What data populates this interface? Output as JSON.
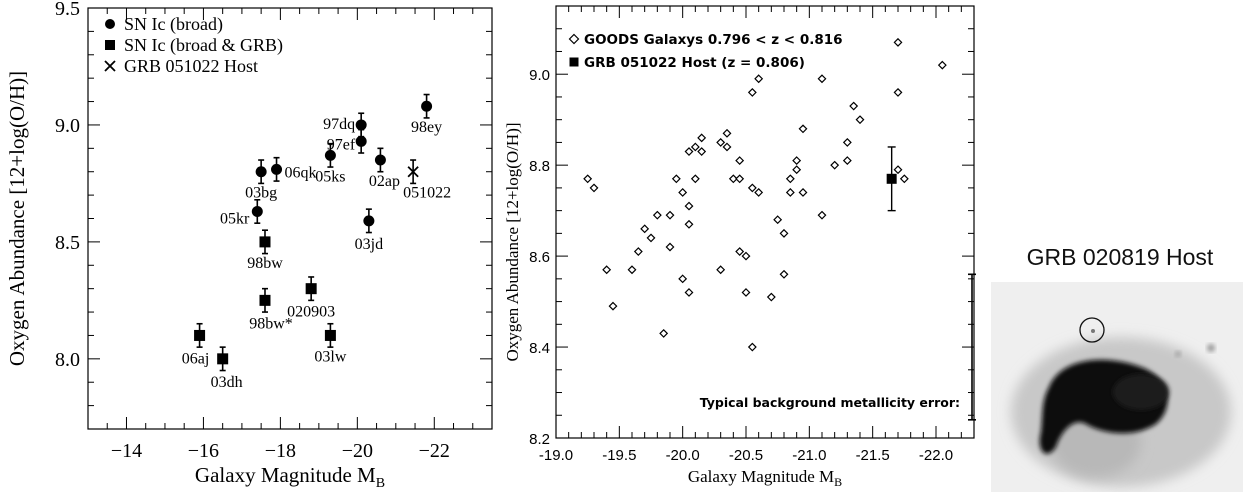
{
  "chart_data": [
    {
      "type": "scatter",
      "xlabel": "Galaxy Magnitude M",
      "xlabel_sub": "B",
      "ylabel": "Oxygen Abundance [12+log(O/H)]",
      "xlim": [
        -13,
        -23.5
      ],
      "ylim": [
        7.7,
        9.5
      ],
      "xticks": [
        -14,
        -16,
        -18,
        -20,
        -22
      ],
      "xtick_labels": [
        "−14",
        "−16",
        "−18",
        "−20",
        "−22"
      ],
      "yticks": [
        8.0,
        8.5,
        9.0,
        9.5
      ],
      "ytick_labels": [
        "8.0",
        "8.5",
        "9.0",
        "9.5"
      ],
      "legend_position": "top-left",
      "legend": [
        {
          "marker": "circle",
          "label": "SN Ic (broad)"
        },
        {
          "marker": "square",
          "label": "SN Ic (broad & GRB)"
        },
        {
          "marker": "x",
          "label": "GRB 051022 Host"
        }
      ],
      "series": [
        {
          "name": "SN Ic (broad)",
          "marker": "circle",
          "points": [
            {
              "label": "03bg",
              "x": -17.5,
              "y": 8.8,
              "err": 0.05
            },
            {
              "label": "06qk",
              "x": -17.9,
              "y": 8.81,
              "err": 0.05
            },
            {
              "label": "05kr",
              "x": -17.4,
              "y": 8.63,
              "err": 0.05
            },
            {
              "label": "05ks",
              "x": -19.3,
              "y": 8.87,
              "err": 0.05
            },
            {
              "label": "97dq",
              "x": -20.1,
              "y": 9.0,
              "err": 0.05
            },
            {
              "label": "97ef",
              "x": -20.1,
              "y": 8.93,
              "err": 0.05
            },
            {
              "label": "02ap",
              "x": -20.6,
              "y": 8.85,
              "err": 0.05
            },
            {
              "label": "03jd",
              "x": -20.3,
              "y": 8.59,
              "err": 0.05
            },
            {
              "label": "98ey",
              "x": -21.8,
              "y": 9.08,
              "err": 0.05
            }
          ]
        },
        {
          "name": "SN Ic (broad & GRB)",
          "marker": "square",
          "points": [
            {
              "label": "98bw",
              "x": -17.6,
              "y": 8.5,
              "err": 0.05
            },
            {
              "label": "98bw*",
              "x": -17.6,
              "y": 8.25,
              "err": 0.05
            },
            {
              "label": "020903",
              "x": -18.8,
              "y": 8.3,
              "err": 0.05
            },
            {
              "label": "03lw",
              "x": -19.3,
              "y": 8.1,
              "err": 0.05
            },
            {
              "label": "06aj",
              "x": -15.9,
              "y": 8.1,
              "err": 0.05
            },
            {
              "label": "03dh",
              "x": -16.5,
              "y": 8.0,
              "err": 0.05
            }
          ]
        },
        {
          "name": "GRB 051022 Host",
          "marker": "x",
          "points": [
            {
              "label": "051022",
              "x": -21.45,
              "y": 8.8,
              "err": 0.05
            }
          ]
        }
      ]
    },
    {
      "type": "scatter",
      "xlabel": "Galaxy Magnitude M",
      "xlabel_sub": "B",
      "ylabel": "Oxygen Abundance [12+log(O/H)]",
      "xlim": [
        -19.0,
        -22.3
      ],
      "ylim": [
        8.2,
        9.15
      ],
      "xticks": [
        -19.0,
        -19.5,
        -20.0,
        -20.5,
        -21.0,
        -21.5,
        -22.0
      ],
      "xtick_labels": [
        "-19.0",
        "-19.5",
        "-20.0",
        "-20.5",
        "-21.0",
        "-21.5",
        "-22.0"
      ],
      "yticks": [
        8.2,
        8.4,
        8.6,
        8.8,
        9.0
      ],
      "ytick_labels": [
        "8.2",
        "8.4",
        "8.6",
        "8.8",
        "9.0"
      ],
      "legend_position": "top-left",
      "legend": [
        {
          "marker": "diamond",
          "label": "GOODS Galaxys 0.796 < z < 0.816"
        },
        {
          "marker": "square",
          "label": "GRB 051022 Host (z = 0.806)"
        }
      ],
      "annotation": "Typical background metallicity error:",
      "typical_error": {
        "low": 8.24,
        "high": 8.56
      },
      "series": [
        {
          "name": "GOODS Galaxys 0.796 < z < 0.816",
          "marker": "diamond",
          "points": [
            [
              -19.25,
              8.77
            ],
            [
              -19.3,
              8.75
            ],
            [
              -19.4,
              8.57
            ],
            [
              -19.45,
              8.49
            ],
            [
              -19.6,
              8.57
            ],
            [
              -19.65,
              8.61
            ],
            [
              -19.7,
              8.66
            ],
            [
              -19.75,
              8.64
            ],
            [
              -19.8,
              8.69
            ],
            [
              -19.85,
              8.43
            ],
            [
              -19.9,
              8.69
            ],
            [
              -19.9,
              8.62
            ],
            [
              -19.95,
              8.77
            ],
            [
              -20.0,
              8.74
            ],
            [
              -20.0,
              8.55
            ],
            [
              -20.05,
              8.52
            ],
            [
              -20.05,
              8.67
            ],
            [
              -20.05,
              8.71
            ],
            [
              -20.05,
              8.83
            ],
            [
              -20.1,
              8.84
            ],
            [
              -20.1,
              8.77
            ],
            [
              -20.15,
              8.83
            ],
            [
              -20.15,
              8.86
            ],
            [
              -20.3,
              8.85
            ],
            [
              -20.3,
              8.57
            ],
            [
              -20.35,
              8.87
            ],
            [
              -20.35,
              8.84
            ],
            [
              -20.4,
              8.77
            ],
            [
              -20.45,
              8.61
            ],
            [
              -20.45,
              8.81
            ],
            [
              -20.45,
              8.77
            ],
            [
              -20.5,
              8.6
            ],
            [
              -20.5,
              8.52
            ],
            [
              -20.55,
              8.75
            ],
            [
              -20.55,
              8.96
            ],
            [
              -20.55,
              8.4
            ],
            [
              -20.6,
              8.99
            ],
            [
              -20.6,
              8.74
            ],
            [
              -20.7,
              8.51
            ],
            [
              -20.75,
              8.68
            ],
            [
              -20.8,
              8.56
            ],
            [
              -20.8,
              8.65
            ],
            [
              -20.85,
              8.77
            ],
            [
              -20.85,
              8.74
            ],
            [
              -20.9,
              8.79
            ],
            [
              -20.9,
              8.81
            ],
            [
              -20.95,
              8.88
            ],
            [
              -20.95,
              8.74
            ],
            [
              -21.1,
              8.69
            ],
            [
              -21.1,
              8.99
            ],
            [
              -21.2,
              8.8
            ],
            [
              -21.3,
              8.85
            ],
            [
              -21.3,
              8.81
            ],
            [
              -21.35,
              8.93
            ],
            [
              -21.4,
              8.9
            ],
            [
              -21.7,
              8.96
            ],
            [
              -21.7,
              9.07
            ],
            [
              -21.7,
              8.79
            ],
            [
              -21.75,
              8.77
            ],
            [
              -22.05,
              9.02
            ]
          ]
        },
        {
          "name": "GRB 051022 Host (z = 0.806)",
          "marker": "square",
          "points": [
            {
              "x": -21.65,
              "y": 8.77,
              "err_low": 8.7,
              "err_high": 8.84
            }
          ]
        }
      ]
    }
  ],
  "image_panel": {
    "title": "GRB 020819 Host"
  }
}
